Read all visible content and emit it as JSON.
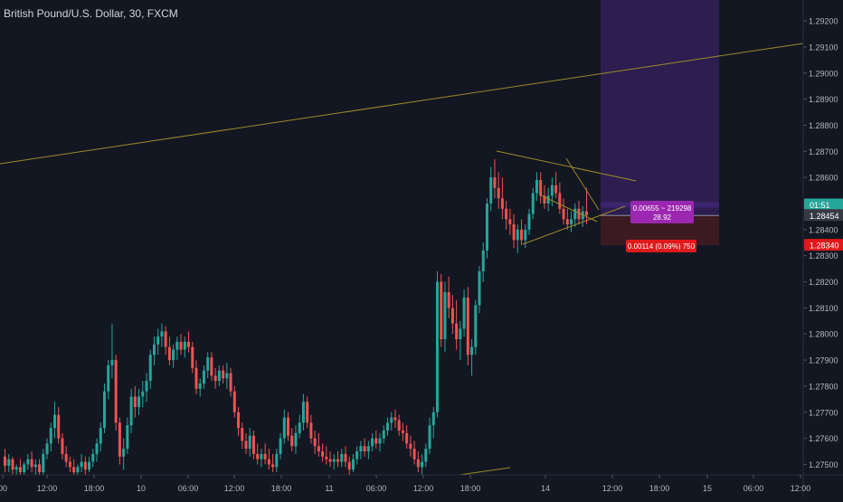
{
  "header": {
    "title": "British Pound/U.S. Dollar, 30, FXCM"
  },
  "colors": {
    "background": "#131722",
    "up": "#26a69a",
    "down": "#ef5350",
    "trendline": "#9c8a2a",
    "target_zone": "#2d1e4f",
    "stop_zone": "#3b1a22",
    "axis_text": "#b2b5be",
    "price_tag_green": "#26a69a",
    "price_tag_red": "#e0191b",
    "tooltip_purple": "#9c27b0",
    "tooltip_red": "#e0191b"
  },
  "chart_data": {
    "type": "candlestick",
    "y_axis": {
      "ticks": [
        "1.29200",
        "1.29100",
        "1.29000",
        "1.28900",
        "1.28800",
        "1.28700",
        "1.28600",
        "1.28500",
        "1.28400",
        "1.28300",
        "1.28200",
        "1.28100",
        "1.28000",
        "1.27900",
        "1.27800",
        "1.27700",
        "1.27600",
        "1.27500"
      ],
      "range": [
        1.2746,
        1.2928
      ]
    },
    "x_axis": {
      "ticks": [
        "00",
        "12:00",
        "18:00",
        "10",
        "06:00",
        "12:00",
        "18:00",
        "11",
        "06:00",
        "12:00",
        "18:00",
        "14",
        "12:00",
        "18:00",
        "15",
        "06:00",
        "12:00"
      ]
    },
    "price_labels": [
      {
        "text": "01:51",
        "value": 1.28495,
        "color": "#26a69a"
      },
      {
        "text": "1.28454",
        "value": 1.28454,
        "color": "#363a45"
      },
      {
        "text": "1.28340",
        "value": 1.2834,
        "color": "#e0191b"
      }
    ],
    "position_tool": {
      "target_label_line1": "0.00655 ~ 219298",
      "target_label_line2": "28.92",
      "stop_label": "0.00114 (0.09%) 750",
      "entry": 1.28454,
      "stop": 1.2834,
      "target": 1.29109
    },
    "candles": [
      {
        "o": 1.2753,
        "h": 1.2756,
        "l": 1.2747,
        "c": 1.27495
      },
      {
        "o": 1.27495,
        "h": 1.2754,
        "l": 1.2747,
        "c": 1.2752
      },
      {
        "o": 1.2752,
        "h": 1.2753,
        "l": 1.2746,
        "c": 1.2748
      },
      {
        "o": 1.2748,
        "h": 1.275,
        "l": 1.2745,
        "c": 1.2749
      },
      {
        "o": 1.2749,
        "h": 1.2752,
        "l": 1.2746,
        "c": 1.2747
      },
      {
        "o": 1.2747,
        "h": 1.2751,
        "l": 1.2746,
        "c": 1.275
      },
      {
        "o": 1.275,
        "h": 1.2754,
        "l": 1.2748,
        "c": 1.2752
      },
      {
        "o": 1.2752,
        "h": 1.2755,
        "l": 1.2747,
        "c": 1.2749
      },
      {
        "o": 1.2749,
        "h": 1.2752,
        "l": 1.2746,
        "c": 1.275
      },
      {
        "o": 1.275,
        "h": 1.2752,
        "l": 1.2745,
        "c": 1.2747
      },
      {
        "o": 1.2747,
        "h": 1.2756,
        "l": 1.2746,
        "c": 1.2754
      },
      {
        "o": 1.2754,
        "h": 1.276,
        "l": 1.2752,
        "c": 1.2758
      },
      {
        "o": 1.2758,
        "h": 1.2766,
        "l": 1.2755,
        "c": 1.2764
      },
      {
        "o": 1.2764,
        "h": 1.2774,
        "l": 1.276,
        "c": 1.2769
      },
      {
        "o": 1.2769,
        "h": 1.2772,
        "l": 1.2758,
        "c": 1.276
      },
      {
        "o": 1.276,
        "h": 1.2762,
        "l": 1.2752,
        "c": 1.2754
      },
      {
        "o": 1.2754,
        "h": 1.2757,
        "l": 1.2749,
        "c": 1.2751
      },
      {
        "o": 1.2751,
        "h": 1.2753,
        "l": 1.2747,
        "c": 1.2749
      },
      {
        "o": 1.2749,
        "h": 1.2752,
        "l": 1.2745,
        "c": 1.2747
      },
      {
        "o": 1.2747,
        "h": 1.275,
        "l": 1.2746,
        "c": 1.2749
      },
      {
        "o": 1.2749,
        "h": 1.2754,
        "l": 1.2747,
        "c": 1.2751
      },
      {
        "o": 1.2751,
        "h": 1.2753,
        "l": 1.2746,
        "c": 1.2748
      },
      {
        "o": 1.2748,
        "h": 1.2753,
        "l": 1.2747,
        "c": 1.2751
      },
      {
        "o": 1.2751,
        "h": 1.2756,
        "l": 1.2749,
        "c": 1.2754
      },
      {
        "o": 1.2754,
        "h": 1.276,
        "l": 1.2751,
        "c": 1.2758
      },
      {
        "o": 1.2758,
        "h": 1.2766,
        "l": 1.2755,
        "c": 1.2764
      },
      {
        "o": 1.2764,
        "h": 1.2781,
        "l": 1.2762,
        "c": 1.2778
      },
      {
        "o": 1.2778,
        "h": 1.279,
        "l": 1.2775,
        "c": 1.2788
      },
      {
        "o": 1.2788,
        "h": 1.2804,
        "l": 1.2783,
        "c": 1.279
      },
      {
        "o": 1.279,
        "h": 1.2792,
        "l": 1.2763,
        "c": 1.2766
      },
      {
        "o": 1.2766,
        "h": 1.2768,
        "l": 1.275,
        "c": 1.2753
      },
      {
        "o": 1.2753,
        "h": 1.276,
        "l": 1.2748,
        "c": 1.2756
      },
      {
        "o": 1.2756,
        "h": 1.2768,
        "l": 1.2754,
        "c": 1.2765
      },
      {
        "o": 1.2765,
        "h": 1.2779,
        "l": 1.2762,
        "c": 1.2776
      },
      {
        "o": 1.2776,
        "h": 1.278,
        "l": 1.2768,
        "c": 1.2772
      },
      {
        "o": 1.2772,
        "h": 1.2779,
        "l": 1.2769,
        "c": 1.2776
      },
      {
        "o": 1.2776,
        "h": 1.2782,
        "l": 1.2772,
        "c": 1.2778
      },
      {
        "o": 1.2778,
        "h": 1.2785,
        "l": 1.2774,
        "c": 1.2782
      },
      {
        "o": 1.2782,
        "h": 1.2794,
        "l": 1.2779,
        "c": 1.2792
      },
      {
        "o": 1.2792,
        "h": 1.2799,
        "l": 1.2788,
        "c": 1.2796
      },
      {
        "o": 1.2796,
        "h": 1.2802,
        "l": 1.2792,
        "c": 1.2799
      },
      {
        "o": 1.2799,
        "h": 1.2804,
        "l": 1.2795,
        "c": 1.2801
      },
      {
        "o": 1.2801,
        "h": 1.2803,
        "l": 1.2792,
        "c": 1.2795
      },
      {
        "o": 1.2795,
        "h": 1.2799,
        "l": 1.2788,
        "c": 1.279
      },
      {
        "o": 1.279,
        "h": 1.2796,
        "l": 1.2787,
        "c": 1.2794
      },
      {
        "o": 1.2794,
        "h": 1.2799,
        "l": 1.279,
        "c": 1.2797
      },
      {
        "o": 1.2797,
        "h": 1.28,
        "l": 1.2792,
        "c": 1.2794
      },
      {
        "o": 1.2794,
        "h": 1.2799,
        "l": 1.2791,
        "c": 1.2797
      },
      {
        "o": 1.2797,
        "h": 1.2801,
        "l": 1.2793,
        "c": 1.2795
      },
      {
        "o": 1.2795,
        "h": 1.2797,
        "l": 1.2785,
        "c": 1.2787
      },
      {
        "o": 1.2787,
        "h": 1.279,
        "l": 1.2777,
        "c": 1.2779
      },
      {
        "o": 1.2779,
        "h": 1.2783,
        "l": 1.2776,
        "c": 1.2781
      },
      {
        "o": 1.2781,
        "h": 1.2788,
        "l": 1.2779,
        "c": 1.2786
      },
      {
        "o": 1.2786,
        "h": 1.2793,
        "l": 1.2783,
        "c": 1.2791
      },
      {
        "o": 1.2791,
        "h": 1.2793,
        "l": 1.2782,
        "c": 1.2784
      },
      {
        "o": 1.2784,
        "h": 1.2787,
        "l": 1.2779,
        "c": 1.2782
      },
      {
        "o": 1.2782,
        "h": 1.2788,
        "l": 1.278,
        "c": 1.2786
      },
      {
        "o": 1.2786,
        "h": 1.2788,
        "l": 1.2781,
        "c": 1.2783
      },
      {
        "o": 1.2783,
        "h": 1.2789,
        "l": 1.2779,
        "c": 1.2785
      },
      {
        "o": 1.2785,
        "h": 1.2787,
        "l": 1.2776,
        "c": 1.2778
      },
      {
        "o": 1.2778,
        "h": 1.278,
        "l": 1.2768,
        "c": 1.277
      },
      {
        "o": 1.277,
        "h": 1.2772,
        "l": 1.2761,
        "c": 1.2764
      },
      {
        "o": 1.2764,
        "h": 1.2766,
        "l": 1.2756,
        "c": 1.2759
      },
      {
        "o": 1.2759,
        "h": 1.2762,
        "l": 1.2754,
        "c": 1.2756
      },
      {
        "o": 1.2756,
        "h": 1.2764,
        "l": 1.2753,
        "c": 1.2761
      },
      {
        "o": 1.2761,
        "h": 1.2763,
        "l": 1.2752,
        "c": 1.2754
      },
      {
        "o": 1.2754,
        "h": 1.2758,
        "l": 1.275,
        "c": 1.2752
      },
      {
        "o": 1.2752,
        "h": 1.2756,
        "l": 1.2749,
        "c": 1.2754
      },
      {
        "o": 1.2754,
        "h": 1.2758,
        "l": 1.275,
        "c": 1.2752
      },
      {
        "o": 1.2752,
        "h": 1.2756,
        "l": 1.2748,
        "c": 1.275
      },
      {
        "o": 1.275,
        "h": 1.2754,
        "l": 1.2747,
        "c": 1.2749
      },
      {
        "o": 1.2749,
        "h": 1.2756,
        "l": 1.2747,
        "c": 1.2754
      },
      {
        "o": 1.2754,
        "h": 1.2762,
        "l": 1.2752,
        "c": 1.276
      },
      {
        "o": 1.276,
        "h": 1.2771,
        "l": 1.2758,
        "c": 1.2768
      },
      {
        "o": 1.2768,
        "h": 1.277,
        "l": 1.2759,
        "c": 1.2761
      },
      {
        "o": 1.2761,
        "h": 1.2764,
        "l": 1.2755,
        "c": 1.2757
      },
      {
        "o": 1.2757,
        "h": 1.2765,
        "l": 1.2754,
        "c": 1.2762
      },
      {
        "o": 1.2762,
        "h": 1.2769,
        "l": 1.276,
        "c": 1.2766
      },
      {
        "o": 1.2766,
        "h": 1.2777,
        "l": 1.2763,
        "c": 1.2774
      },
      {
        "o": 1.2774,
        "h": 1.2776,
        "l": 1.2764,
        "c": 1.2766
      },
      {
        "o": 1.2766,
        "h": 1.2769,
        "l": 1.2758,
        "c": 1.276
      },
      {
        "o": 1.276,
        "h": 1.2763,
        "l": 1.2754,
        "c": 1.2757
      },
      {
        "o": 1.2757,
        "h": 1.2762,
        "l": 1.2753,
        "c": 1.2755
      },
      {
        "o": 1.2755,
        "h": 1.2758,
        "l": 1.2751,
        "c": 1.2753
      },
      {
        "o": 1.2753,
        "h": 1.2757,
        "l": 1.275,
        "c": 1.2752
      },
      {
        "o": 1.2752,
        "h": 1.2755,
        "l": 1.2749,
        "c": 1.2751
      },
      {
        "o": 1.2751,
        "h": 1.2754,
        "l": 1.2748,
        "c": 1.2752
      },
      {
        "o": 1.2752,
        "h": 1.2755,
        "l": 1.2749,
        "c": 1.2751
      },
      {
        "o": 1.2751,
        "h": 1.2756,
        "l": 1.2749,
        "c": 1.2754
      },
      {
        "o": 1.2754,
        "h": 1.2757,
        "l": 1.2749,
        "c": 1.2751
      },
      {
        "o": 1.2751,
        "h": 1.2753,
        "l": 1.2746,
        "c": 1.2748
      },
      {
        "o": 1.2748,
        "h": 1.2754,
        "l": 1.2747,
        "c": 1.2752
      },
      {
        "o": 1.2752,
        "h": 1.2757,
        "l": 1.275,
        "c": 1.2755
      },
      {
        "o": 1.2755,
        "h": 1.2759,
        "l": 1.2752,
        "c": 1.2757
      },
      {
        "o": 1.2757,
        "h": 1.276,
        "l": 1.2753,
        "c": 1.2755
      },
      {
        "o": 1.2755,
        "h": 1.2759,
        "l": 1.2752,
        "c": 1.2757
      },
      {
        "o": 1.2757,
        "h": 1.2762,
        "l": 1.2755,
        "c": 1.276
      },
      {
        "o": 1.276,
        "h": 1.2763,
        "l": 1.2756,
        "c": 1.2758
      },
      {
        "o": 1.2758,
        "h": 1.2762,
        "l": 1.2755,
        "c": 1.276
      },
      {
        "o": 1.276,
        "h": 1.2765,
        "l": 1.2758,
        "c": 1.2763
      },
      {
        "o": 1.2763,
        "h": 1.2768,
        "l": 1.2761,
        "c": 1.2766
      },
      {
        "o": 1.2766,
        "h": 1.277,
        "l": 1.2763,
        "c": 1.2768
      },
      {
        "o": 1.2768,
        "h": 1.2771,
        "l": 1.2764,
        "c": 1.2767
      },
      {
        "o": 1.2767,
        "h": 1.2769,
        "l": 1.2761,
        "c": 1.2763
      },
      {
        "o": 1.2763,
        "h": 1.2766,
        "l": 1.2759,
        "c": 1.2762
      },
      {
        "o": 1.2762,
        "h": 1.2765,
        "l": 1.2756,
        "c": 1.2758
      },
      {
        "o": 1.2758,
        "h": 1.2761,
        "l": 1.2753,
        "c": 1.2756
      },
      {
        "o": 1.2756,
        "h": 1.2759,
        "l": 1.275,
        "c": 1.2752
      },
      {
        "o": 1.2752,
        "h": 1.2755,
        "l": 1.2747,
        "c": 1.2749
      },
      {
        "o": 1.2749,
        "h": 1.2754,
        "l": 1.2746,
        "c": 1.2751
      },
      {
        "o": 1.2751,
        "h": 1.2758,
        "l": 1.2749,
        "c": 1.2756
      },
      {
        "o": 1.2756,
        "h": 1.2768,
        "l": 1.2754,
        "c": 1.2765
      },
      {
        "o": 1.2765,
        "h": 1.2772,
        "l": 1.276,
        "c": 1.277
      },
      {
        "o": 1.277,
        "h": 1.2824,
        "l": 1.2768,
        "c": 1.282
      },
      {
        "o": 1.282,
        "h": 1.2823,
        "l": 1.2795,
        "c": 1.2798
      },
      {
        "o": 1.2798,
        "h": 1.282,
        "l": 1.2793,
        "c": 1.2816
      },
      {
        "o": 1.2816,
        "h": 1.2822,
        "l": 1.2806,
        "c": 1.281
      },
      {
        "o": 1.281,
        "h": 1.2815,
        "l": 1.28,
        "c": 1.2804
      },
      {
        "o": 1.2804,
        "h": 1.2813,
        "l": 1.2794,
        "c": 1.2798
      },
      {
        "o": 1.2798,
        "h": 1.2805,
        "l": 1.279,
        "c": 1.2802
      },
      {
        "o": 1.2802,
        "h": 1.2817,
        "l": 1.2799,
        "c": 1.2814
      },
      {
        "o": 1.2814,
        "h": 1.2818,
        "l": 1.2788,
        "c": 1.2792
      },
      {
        "o": 1.2792,
        "h": 1.2798,
        "l": 1.2784,
        "c": 1.2795
      },
      {
        "o": 1.2795,
        "h": 1.2813,
        "l": 1.2792,
        "c": 1.2811
      },
      {
        "o": 1.2811,
        "h": 1.2826,
        "l": 1.2808,
        "c": 1.2824
      },
      {
        "o": 1.2824,
        "h": 1.2835,
        "l": 1.282,
        "c": 1.2832
      },
      {
        "o": 1.2832,
        "h": 1.2852,
        "l": 1.2829,
        "c": 1.285
      },
      {
        "o": 1.285,
        "h": 1.2864,
        "l": 1.2847,
        "c": 1.286
      },
      {
        "o": 1.286,
        "h": 1.2867,
        "l": 1.2852,
        "c": 1.2856
      },
      {
        "o": 1.2856,
        "h": 1.2862,
        "l": 1.2848,
        "c": 1.2852
      },
      {
        "o": 1.2852,
        "h": 1.286,
        "l": 1.2844,
        "c": 1.2848
      },
      {
        "o": 1.2848,
        "h": 1.2851,
        "l": 1.284,
        "c": 1.2844
      },
      {
        "o": 1.2844,
        "h": 1.2848,
        "l": 1.2838,
        "c": 1.2842
      },
      {
        "o": 1.2842,
        "h": 1.2846,
        "l": 1.2833,
        "c": 1.2836
      },
      {
        "o": 1.2836,
        "h": 1.2842,
        "l": 1.2831,
        "c": 1.284
      },
      {
        "o": 1.284,
        "h": 1.2844,
        "l": 1.2834,
        "c": 1.2836
      },
      {
        "o": 1.2836,
        "h": 1.2842,
        "l": 1.2833,
        "c": 1.284
      },
      {
        "o": 1.284,
        "h": 1.2848,
        "l": 1.2838,
        "c": 1.2846
      },
      {
        "o": 1.2846,
        "h": 1.2856,
        "l": 1.2844,
        "c": 1.2854
      },
      {
        "o": 1.2854,
        "h": 1.2862,
        "l": 1.2851,
        "c": 1.2859
      },
      {
        "o": 1.2859,
        "h": 1.2862,
        "l": 1.285,
        "c": 1.2853
      },
      {
        "o": 1.2853,
        "h": 1.2857,
        "l": 1.2848,
        "c": 1.285
      },
      {
        "o": 1.285,
        "h": 1.2856,
        "l": 1.2847,
        "c": 1.2853
      },
      {
        "o": 1.2853,
        "h": 1.286,
        "l": 1.2849,
        "c": 1.2857
      },
      {
        "o": 1.2857,
        "h": 1.2862,
        "l": 1.2852,
        "c": 1.2854
      },
      {
        "o": 1.2854,
        "h": 1.2858,
        "l": 1.2846,
        "c": 1.2848
      },
      {
        "o": 1.2848,
        "h": 1.2852,
        "l": 1.2842,
        "c": 1.2844
      },
      {
        "o": 1.2844,
        "h": 1.2848,
        "l": 1.284,
        "c": 1.2842
      },
      {
        "o": 1.2842,
        "h": 1.2847,
        "l": 1.2839,
        "c": 1.2844
      },
      {
        "o": 1.2844,
        "h": 1.285,
        "l": 1.2841,
        "c": 1.2848
      },
      {
        "o": 1.2848,
        "h": 1.2851,
        "l": 1.2842,
        "c": 1.2844
      },
      {
        "o": 1.2844,
        "h": 1.2849,
        "l": 1.2841,
        "c": 1.2847
      },
      {
        "o": 1.2847,
        "h": 1.2856,
        "l": 1.2842,
        "c": 1.28454
      }
    ]
  }
}
